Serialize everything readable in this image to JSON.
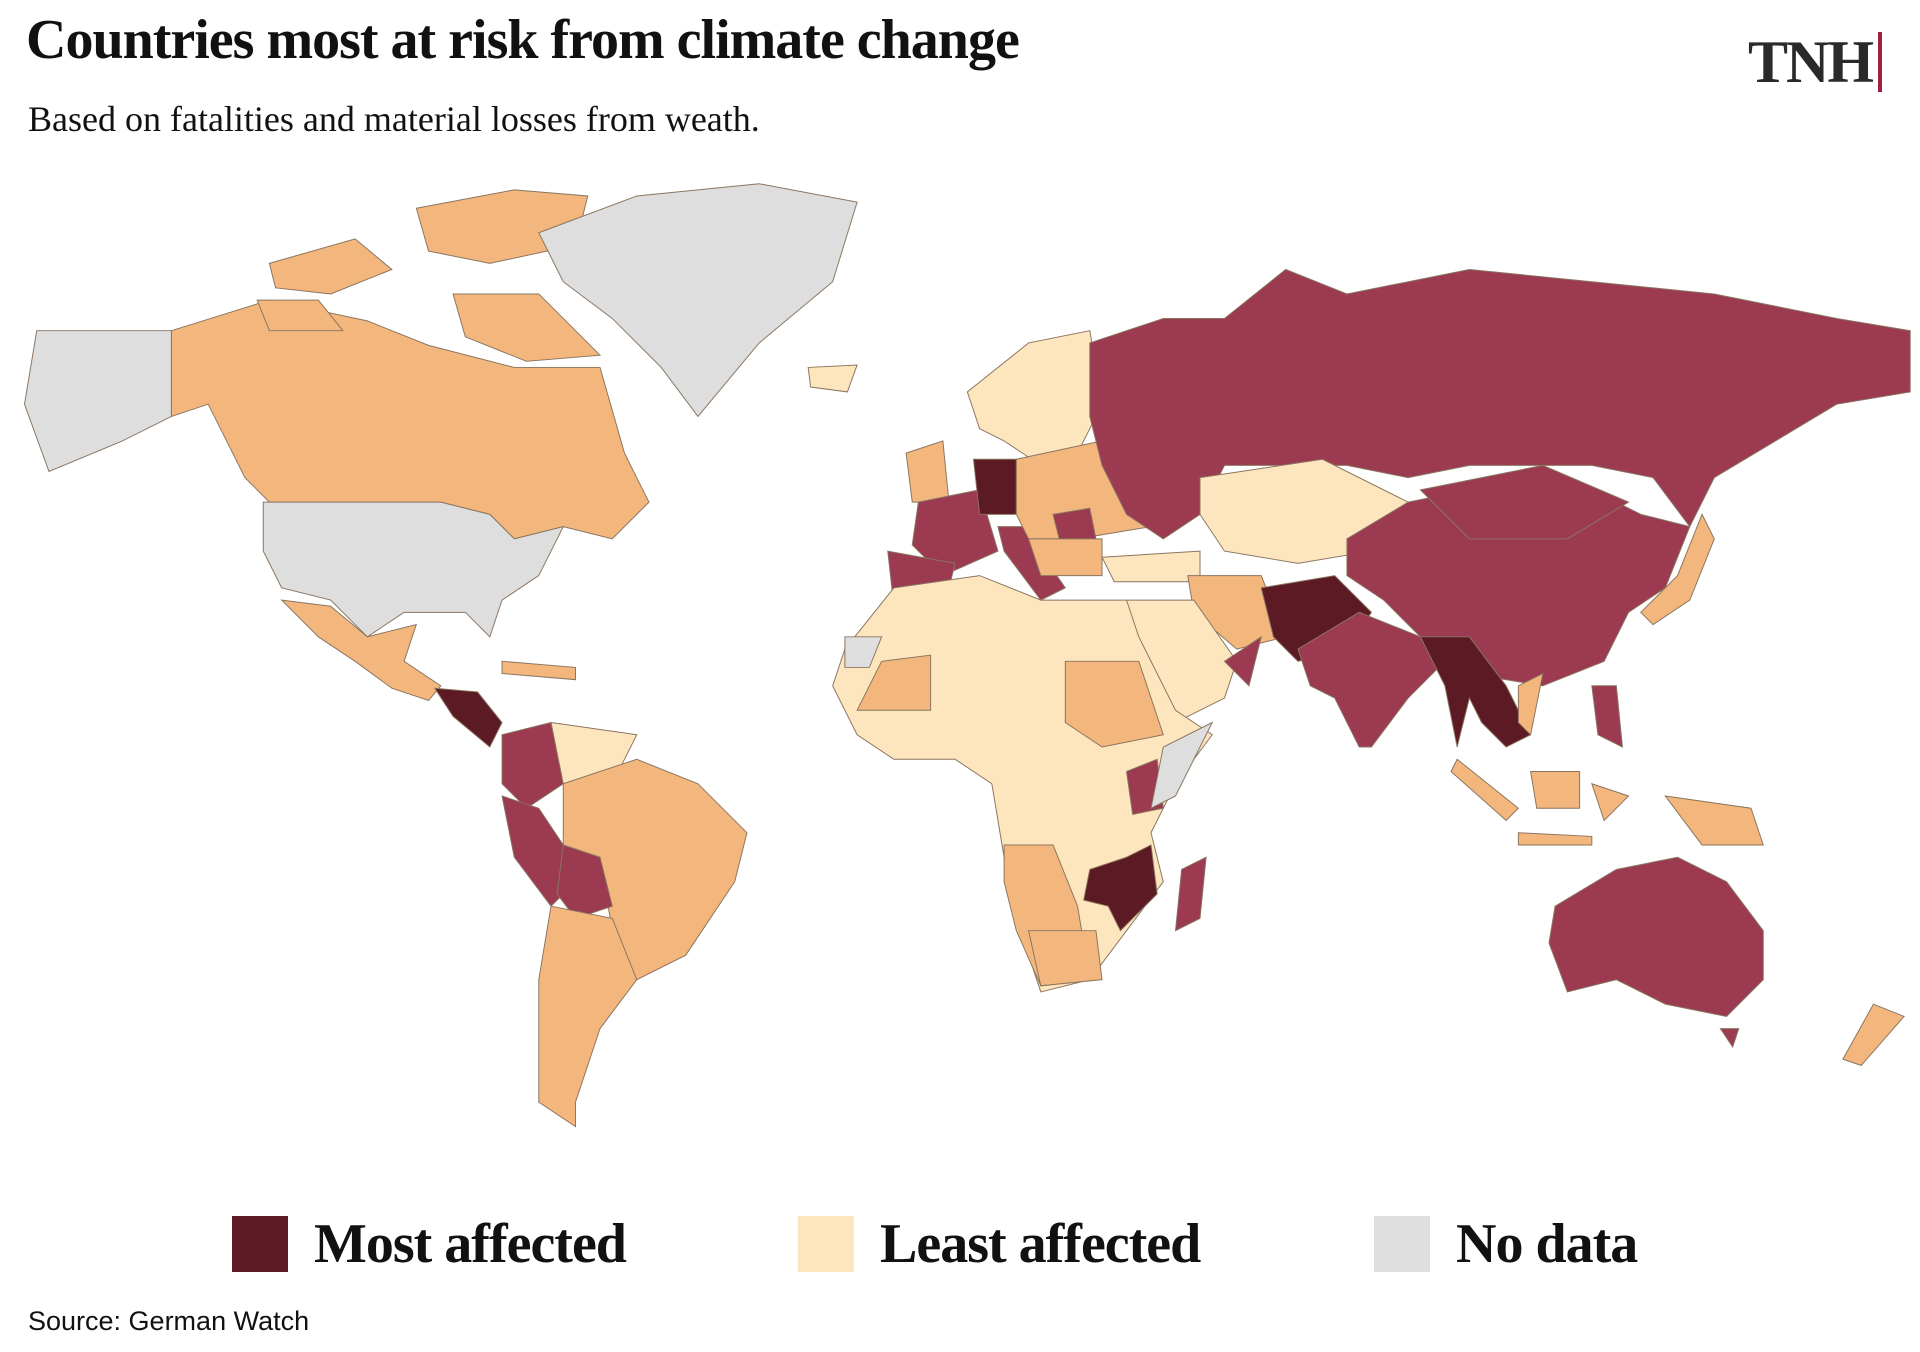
{
  "header": {
    "title": "Countries most at risk from climate change",
    "subtitle": "Based on fatalities and material losses from weath.",
    "logo": "TNH"
  },
  "legend": [
    {
      "label": "Most affected",
      "color": "#5c1a24"
    },
    {
      "label": "Least affected",
      "color": "#fde6bd"
    },
    {
      "label": "No data",
      "color": "#dedede"
    }
  ],
  "map": {
    "scale_colors": [
      "#5c1a24",
      "#9b3a50",
      "#f3b77e",
      "#fde6bd"
    ],
    "no_data_color": "#dedede"
  },
  "footer": {
    "source": "Source: German Watch"
  }
}
